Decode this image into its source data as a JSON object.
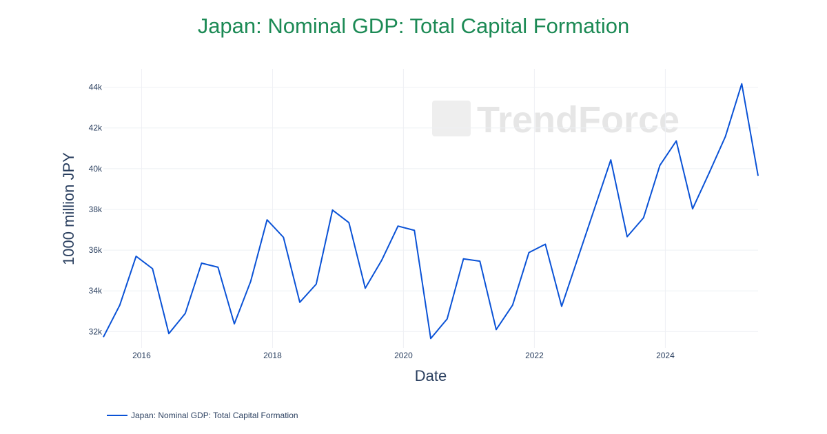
{
  "chart_data": {
    "type": "line",
    "title": "Japan: Nominal GDP: Total Capital Formation",
    "xlabel": "Date",
    "ylabel": "1000 million JPY",
    "x_ticks": [
      "2016",
      "2018",
      "2020",
      "2022",
      "2024"
    ],
    "y_ticks": [
      "32k",
      "34k",
      "36k",
      "38k",
      "40k",
      "42k",
      "44k"
    ],
    "xlim": [
      "2015-06",
      "2025-06"
    ],
    "ylim": [
      31.2,
      44.9
    ],
    "grid": true,
    "legend_placement": "bottom-left",
    "colors": {
      "title": "#1c8a55",
      "line": "#0a52d6"
    },
    "watermark": "TrendForce",
    "series": [
      {
        "name": "Japan: Nominal GDP: Total Capital Formation",
        "x": [
          "2015-06",
          "2015-09",
          "2015-12",
          "2016-03",
          "2016-06",
          "2016-09",
          "2016-12",
          "2017-03",
          "2017-06",
          "2017-09",
          "2017-12",
          "2018-03",
          "2018-06",
          "2018-09",
          "2018-12",
          "2019-03",
          "2019-06",
          "2019-09",
          "2019-12",
          "2020-03",
          "2020-06",
          "2020-09",
          "2020-12",
          "2021-03",
          "2021-06",
          "2021-09",
          "2021-12",
          "2022-03",
          "2022-06",
          "2022-09",
          "2022-12",
          "2023-03",
          "2023-06",
          "2023-09",
          "2023-12",
          "2024-03",
          "2024-06",
          "2024-09",
          "2024-12",
          "2025-03",
          "2025-06"
        ],
        "values": [
          31.73,
          33.3,
          35.7,
          35.09,
          31.9,
          32.89,
          35.36,
          35.16,
          32.38,
          34.47,
          37.49,
          36.63,
          33.44,
          34.33,
          37.97,
          37.35,
          34.13,
          35.5,
          37.18,
          36.97,
          31.66,
          32.62,
          35.57,
          35.46,
          32.1,
          33.3,
          35.88,
          36.29,
          33.24,
          35.64,
          38.03,
          40.43,
          36.66,
          37.59,
          40.16,
          41.36,
          38.03,
          39.78,
          41.57,
          44.17,
          39.65
        ]
      }
    ]
  }
}
